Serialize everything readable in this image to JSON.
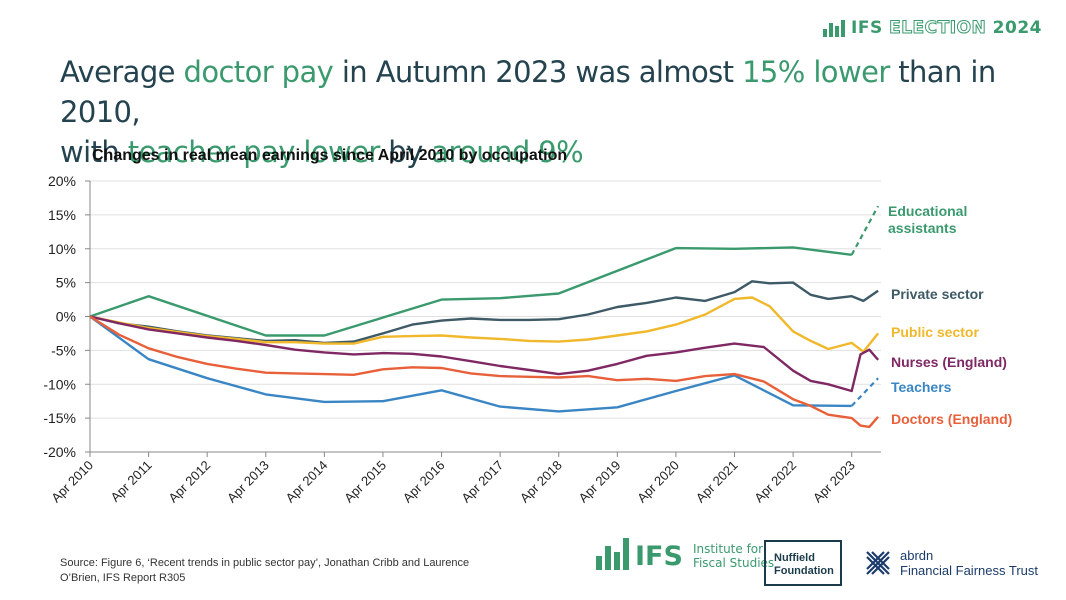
{
  "brand": {
    "ifs": "IFS",
    "election": "ELECTION",
    "year": "2024"
  },
  "headline": {
    "p1": "Average ",
    "h1": "doctor pay",
    "p2": " in Autumn 2023 was almost ",
    "h2": "15% lower",
    "p3": " than in 2010,",
    "p4": "with ",
    "h3": "teacher pay lower",
    "p5": " by ",
    "h4": "around 9%"
  },
  "colors": {
    "educational_assistants": "#3a9a6e",
    "private_sector": "#3d5a66",
    "public_sector": "#f0b82a",
    "nurses": "#7f2863",
    "teachers": "#3a86c4",
    "doctors": "#e8603a",
    "headline": "#24434f",
    "accent": "#3a9a6e"
  },
  "chart_data": {
    "type": "line",
    "title": "Changes in real mean earnings since April 2010 by occupation",
    "xlabel": "",
    "ylabel": "",
    "ylim": [
      -20,
      20
    ],
    "y_ticks": [
      "20%",
      "15%",
      "10%",
      "5%",
      "0%",
      "-5%",
      "-10%",
      "-15%",
      "-20%"
    ],
    "x_ticks": [
      "Apr 2010",
      "Apr 2011",
      "Apr 2012",
      "Apr 2013",
      "Apr 2014",
      "Apr 2015",
      "Apr 2016",
      "Apr 2017",
      "Apr 2018",
      "Apr 2019",
      "Apr 2020",
      "Apr 2021",
      "Apr 2022",
      "Apr 2023"
    ],
    "x_range": [
      2010.0,
      2023.5
    ],
    "series": [
      {
        "name": "Educational assistants",
        "label_lines": [
          "Educational",
          "assistants"
        ],
        "color_key": "educational_assistants",
        "x": [
          2010,
          2011,
          2013,
          2014,
          2016,
          2017,
          2018,
          2020,
          2021,
          2022,
          2023
        ],
        "values": [
          0,
          3,
          -2.8,
          -2.8,
          2.5,
          2.7,
          3.4,
          10.1,
          10.0,
          10.2,
          9.1
        ],
        "projection": {
          "x": [
            2023,
            2023.45
          ],
          "values": [
            9.1,
            16.3
          ]
        }
      },
      {
        "name": "Private sector",
        "color_key": "private_sector",
        "x": [
          2010,
          2010.5,
          2011,
          2011.5,
          2012,
          2012.5,
          2013,
          2013.5,
          2014,
          2014.5,
          2015,
          2015.5,
          2016,
          2016.5,
          2017,
          2017.5,
          2018,
          2018.5,
          2019,
          2019.5,
          2020,
          2020.3,
          2020.5,
          2021,
          2021.3,
          2021.6,
          2022,
          2022.3,
          2022.6,
          2023,
          2023.2,
          2023.45
        ],
        "values": [
          0,
          -1.0,
          -1.5,
          -2.2,
          -2.8,
          -3.2,
          -3.6,
          -3.5,
          -3.9,
          -3.7,
          -2.5,
          -1.2,
          -0.6,
          -0.3,
          -0.5,
          -0.5,
          -0.4,
          0.3,
          1.4,
          2.0,
          2.8,
          2.5,
          2.3,
          3.6,
          5.2,
          4.9,
          5.0,
          3.2,
          2.6,
          3.0,
          2.3,
          3.8
        ]
      },
      {
        "name": "Public sector",
        "color_key": "public_sector",
        "x": [
          2010,
          2010.5,
          2011,
          2011.5,
          2012,
          2012.5,
          2013,
          2013.5,
          2014,
          2014.5,
          2015,
          2015.5,
          2016,
          2016.5,
          2017,
          2017.5,
          2018,
          2018.5,
          2019,
          2019.5,
          2020,
          2020.5,
          2021,
          2021.3,
          2021.6,
          2022,
          2022.3,
          2022.6,
          2023,
          2023.2,
          2023.45
        ],
        "values": [
          0,
          -0.9,
          -1.7,
          -2.3,
          -2.9,
          -3.3,
          -3.8,
          -3.8,
          -4.0,
          -4.0,
          -3.0,
          -2.9,
          -2.8,
          -3.1,
          -3.3,
          -3.6,
          -3.7,
          -3.4,
          -2.8,
          -2.2,
          -1.2,
          0.3,
          2.6,
          2.8,
          1.5,
          -2.2,
          -3.6,
          -4.8,
          -3.9,
          -5.2,
          -2.5
        ]
      },
      {
        "name": "Nurses (England)",
        "color_key": "nurses",
        "x": [
          2010,
          2010.5,
          2011,
          2011.5,
          2012,
          2012.5,
          2013,
          2013.5,
          2014,
          2014.5,
          2015,
          2015.5,
          2016,
          2016.5,
          2017,
          2017.5,
          2018,
          2018.5,
          2019,
          2019.5,
          2020,
          2020.5,
          2021,
          2021.5,
          2022,
          2022.3,
          2022.6,
          2023,
          2023.15,
          2023.3,
          2023.45
        ],
        "values": [
          0,
          -1.0,
          -1.9,
          -2.5,
          -3.1,
          -3.6,
          -4.2,
          -4.9,
          -5.3,
          -5.6,
          -5.4,
          -5.5,
          -5.9,
          -6.6,
          -7.3,
          -7.9,
          -8.5,
          -8.0,
          -7.0,
          -5.8,
          -5.3,
          -4.6,
          -4.0,
          -4.5,
          -8.0,
          -9.5,
          -10.0,
          -11.0,
          -5.6,
          -4.9,
          -6.4
        ]
      },
      {
        "name": "Teachers",
        "color_key": "teachers",
        "x": [
          2010,
          2011,
          2012,
          2013,
          2014,
          2015,
          2016,
          2017,
          2018,
          2019,
          2020,
          2021,
          2022,
          2023
        ],
        "values": [
          0,
          -6.3,
          -9.1,
          -11.5,
          -12.6,
          -12.5,
          -10.9,
          -13.3,
          -14.0,
          -13.4,
          -11.0,
          -8.7,
          -13.1,
          -13.2
        ],
        "projection": {
          "x": [
            2023,
            2023.45
          ],
          "values": [
            -13.2,
            -9.1
          ]
        }
      },
      {
        "name": "Doctors (England)",
        "color_key": "doctors",
        "x": [
          2010,
          2010.5,
          2011,
          2011.5,
          2012,
          2012.5,
          2013,
          2013.5,
          2014,
          2014.5,
          2015,
          2015.5,
          2016,
          2016.5,
          2017,
          2017.5,
          2018,
          2018.5,
          2019,
          2019.5,
          2020,
          2020.5,
          2021,
          2021.5,
          2022,
          2022.3,
          2022.6,
          2023,
          2023.15,
          2023.3,
          2023.45
        ],
        "values": [
          0,
          -2.7,
          -4.7,
          -6.0,
          -7.0,
          -7.7,
          -8.3,
          -8.4,
          -8.5,
          -8.6,
          -7.8,
          -7.5,
          -7.6,
          -8.4,
          -8.8,
          -8.9,
          -9.0,
          -8.8,
          -9.4,
          -9.2,
          -9.5,
          -8.8,
          -8.5,
          -9.6,
          -12.2,
          -13.2,
          -14.5,
          -15.0,
          -16.1,
          -16.3,
          -14.8
        ]
      }
    ]
  },
  "source": {
    "line1": "Source: Figure 6, ‘Recent trends in public sector pay’, Jonathan Cribb and Laurence",
    "line2": "O’Brien, IFS Report R305"
  },
  "logos": {
    "ifs_word": "IFS",
    "ifs_sub1": "Institute for",
    "ifs_sub2": "Fiscal Studies",
    "nuffield1": "Nuffield",
    "nuffield2": "Foundation",
    "abrdn1": "abrdn",
    "abrdn2": "Financial Fairness Trust"
  }
}
